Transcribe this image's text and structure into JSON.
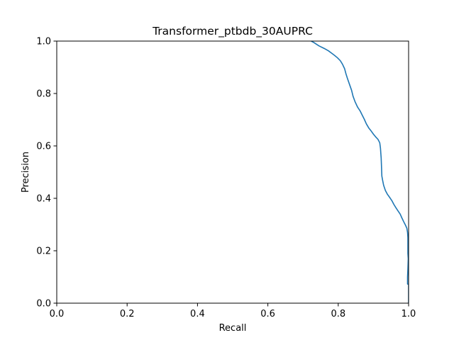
{
  "chart_data": {
    "type": "line",
    "title": "Transformer_ptbdb_30AUPRC",
    "xlabel": "Recall",
    "ylabel": "Precision",
    "xlim": [
      0,
      1
    ],
    "ylim": [
      0,
      1
    ],
    "xticks": [
      "0.0",
      "0.2",
      "0.4",
      "0.6",
      "0.8",
      "1.0"
    ],
    "yticks": [
      "0.0",
      "0.2",
      "0.4",
      "0.6",
      "0.8",
      "1.0"
    ],
    "grid": false,
    "legend": "none",
    "series": [
      {
        "color": "#1f77b4",
        "points": [
          [
            0.723,
            1.0
          ],
          [
            0.73,
            0.995
          ],
          [
            0.745,
            0.982
          ],
          [
            0.76,
            0.972
          ],
          [
            0.772,
            0.963
          ],
          [
            0.781,
            0.954
          ],
          [
            0.79,
            0.945
          ],
          [
            0.798,
            0.936
          ],
          [
            0.806,
            0.925
          ],
          [
            0.812,
            0.912
          ],
          [
            0.818,
            0.895
          ],
          [
            0.822,
            0.875
          ],
          [
            0.826,
            0.858
          ],
          [
            0.832,
            0.835
          ],
          [
            0.838,
            0.812
          ],
          [
            0.842,
            0.79
          ],
          [
            0.848,
            0.768
          ],
          [
            0.855,
            0.748
          ],
          [
            0.862,
            0.734
          ],
          [
            0.868,
            0.718
          ],
          [
            0.874,
            0.702
          ],
          [
            0.88,
            0.684
          ],
          [
            0.887,
            0.668
          ],
          [
            0.893,
            0.658
          ],
          [
            0.9,
            0.645
          ],
          [
            0.906,
            0.635
          ],
          [
            0.913,
            0.625
          ],
          [
            0.918,
            0.612
          ],
          [
            0.92,
            0.592
          ],
          [
            0.921,
            0.572
          ],
          [
            0.922,
            0.555
          ],
          [
            0.923,
            0.52
          ],
          [
            0.924,
            0.485
          ],
          [
            0.926,
            0.47
          ],
          [
            0.929,
            0.45
          ],
          [
            0.934,
            0.43
          ],
          [
            0.94,
            0.415
          ],
          [
            0.947,
            0.402
          ],
          [
            0.953,
            0.39
          ],
          [
            0.958,
            0.377
          ],
          [
            0.964,
            0.364
          ],
          [
            0.97,
            0.352
          ],
          [
            0.976,
            0.34
          ],
          [
            0.981,
            0.325
          ],
          [
            0.986,
            0.311
          ],
          [
            0.991,
            0.298
          ],
          [
            0.995,
            0.286
          ],
          [
            0.997,
            0.27
          ],
          [
            0.998,
            0.25
          ],
          [
            0.998,
            0.22
          ],
          [
            0.998,
            0.19
          ],
          [
            0.999,
            0.17
          ],
          [
            0.998,
            0.13
          ],
          [
            0.997,
            0.1
          ],
          [
            0.997,
            0.073
          ],
          [
            0.999,
            0.072
          ],
          [
            1.0,
            0.071
          ],
          [
            1.0,
            0.0
          ]
        ]
      }
    ]
  }
}
